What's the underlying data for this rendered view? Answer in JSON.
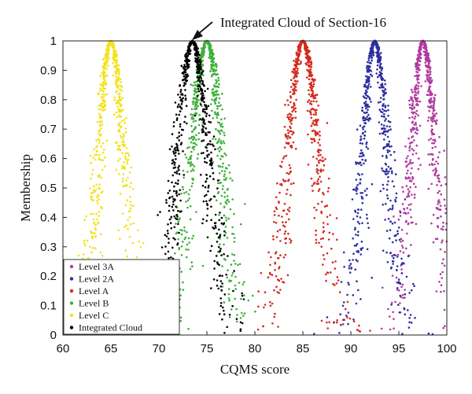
{
  "chart_data": {
    "type": "scatter",
    "title": "",
    "xlabel": "CQMS score",
    "ylabel": "Membership",
    "xlim": [
      60,
      100
    ],
    "ylim": [
      0,
      1
    ],
    "xticks": [
      60,
      65,
      70,
      75,
      80,
      85,
      90,
      95,
      100
    ],
    "yticks": [
      0,
      0.1,
      0.2,
      0.3,
      0.4,
      0.5,
      0.6,
      0.7,
      0.8,
      0.9,
      1
    ],
    "xtick_labels": [
      "60",
      "65",
      "70",
      "75",
      "80",
      "85",
      "90",
      "95",
      "100"
    ],
    "ytick_labels": [
      "0",
      "0.1",
      "0.2",
      "0.3",
      "0.4",
      "0.5",
      "0.6",
      "0.7",
      "0.8",
      "0.9",
      "1"
    ],
    "grid": false,
    "legend_position": "bottom-left",
    "annotation": {
      "text": "Integrated Cloud of Section-16",
      "x": 73.5,
      "y": 1
    },
    "series": [
      {
        "name": "Level 3A",
        "color": "#b03a9f",
        "ex": 97.5,
        "en": 1.3,
        "he": 0.35
      },
      {
        "name": "Level 2A",
        "color": "#2e2ea0",
        "ex": 92.5,
        "en": 1.3,
        "he": 0.35
      },
      {
        "name": "Level A",
        "color": "#d42a1e",
        "ex": 85,
        "en": 1.6,
        "he": 0.4
      },
      {
        "name": "Level B",
        "color": "#3fb03a",
        "ex": 75,
        "en": 1.6,
        "he": 0.4
      },
      {
        "name": "Level C",
        "color": "#f3e21a",
        "ex": 65,
        "en": 1.3,
        "he": 0.35
      },
      {
        "name": "Integrated Cloud",
        "color": "#000000",
        "ex": 73.5,
        "en": 1.6,
        "he": 0.4
      }
    ]
  }
}
